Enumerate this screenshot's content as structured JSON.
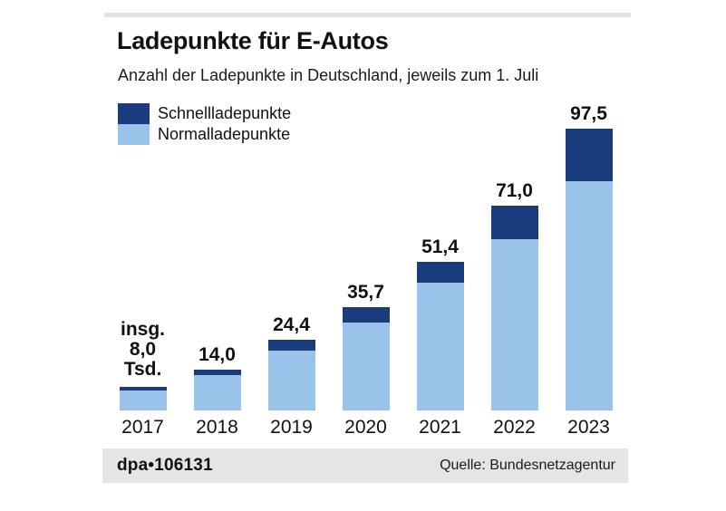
{
  "header": {
    "title": "Ladepunkte für E-Autos",
    "subtitle": "Anzahl der Ladepunkte in Deutschland, jeweils zum 1. Juli"
  },
  "legend": {
    "items": [
      {
        "label": "Schnellladepunkte",
        "color": "#1a3b7c"
      },
      {
        "label": "Normalladepunkte",
        "color": "#99c3e9"
      }
    ]
  },
  "chart_data": {
    "type": "bar",
    "stacked": true,
    "unit": "Tsd.",
    "title": "Ladepunkte für E-Autos",
    "subtitle": "Anzahl der Ladepunkte in Deutschland, jeweils zum 1. Juli",
    "categories": [
      "2017",
      "2018",
      "2019",
      "2020",
      "2021",
      "2022",
      "2023"
    ],
    "totals": [
      8.0,
      14.0,
      24.4,
      35.7,
      51.4,
      71.0,
      97.5
    ],
    "value_labels": [
      [
        "insg.",
        "8,0",
        "Tsd."
      ],
      [
        "14,0"
      ],
      [
        "24,4"
      ],
      [
        "35,7"
      ],
      [
        "51,4"
      ],
      [
        "71,0"
      ],
      [
        "97,5"
      ]
    ],
    "series": [
      {
        "name": "Schnellladepunkte",
        "color": "#1a3b7c",
        "values": [
          1.4,
          1.9,
          3.9,
          5.4,
          7.3,
          11.7,
          18.1
        ]
      },
      {
        "name": "Normalladepunkte",
        "color": "#99c3e9",
        "values": [
          6.6,
          12.1,
          20.5,
          30.3,
          44.1,
          59.3,
          79.4
        ]
      }
    ],
    "legend_position": "top-left",
    "grid": false,
    "y_axis_visible": false
  },
  "footer": {
    "left": "dpa•106131",
    "right": "Quelle: Bundesnetzagentur"
  },
  "colors": {
    "schnellladepunkte": "#1a3b7c",
    "normalladepunkte": "#99c3e9",
    "footer_bg": "#e5e5e5",
    "top_strip": "#e2e2e2",
    "text": "#111111",
    "background": "#ffffff"
  }
}
